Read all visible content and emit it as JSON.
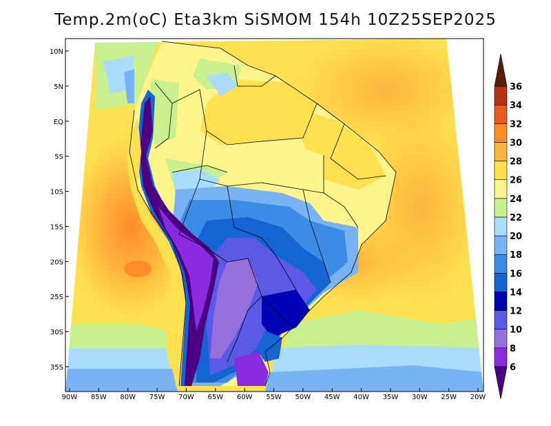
{
  "title": "Temp.2m(oC) Eta3km SiSMOM 154h 10Z25SEP2025",
  "map": {
    "variable": "2 m air temperature",
    "units": "oC",
    "lon_range": [
      -91,
      -19
    ],
    "lat_range": [
      -38,
      12
    ],
    "lon_ticks": [
      "90W",
      "85W",
      "80W",
      "75W",
      "70W",
      "65W",
      "60W",
      "55W",
      "50W",
      "45W",
      "40W",
      "35W",
      "30W",
      "25W",
      "20W"
    ],
    "lat_ticks": [
      "10N",
      "5N",
      "EQ",
      "5S",
      "10S",
      "15S",
      "20S",
      "25S",
      "30S",
      "35S"
    ]
  },
  "colorbar": {
    "levels": [
      "6",
      "8",
      "10",
      "12",
      "14",
      "16",
      "18",
      "20",
      "22",
      "24",
      "26",
      "28",
      "30",
      "32",
      "34",
      "36"
    ],
    "colors": [
      "#4b0082",
      "#8a2be2",
      "#9370db",
      "#5a5ae6",
      "#0000b4",
      "#1464d2",
      "#3c8ce6",
      "#78b4f5",
      "#aadcff",
      "#c8f08c",
      "#fff58c",
      "#ffe150",
      "#ffb43c",
      "#ff8c28",
      "#e65a1e",
      "#b43214",
      "#6e1e0a"
    ],
    "min_color": "#4b0082",
    "max_color": "#5a1e0a"
  }
}
